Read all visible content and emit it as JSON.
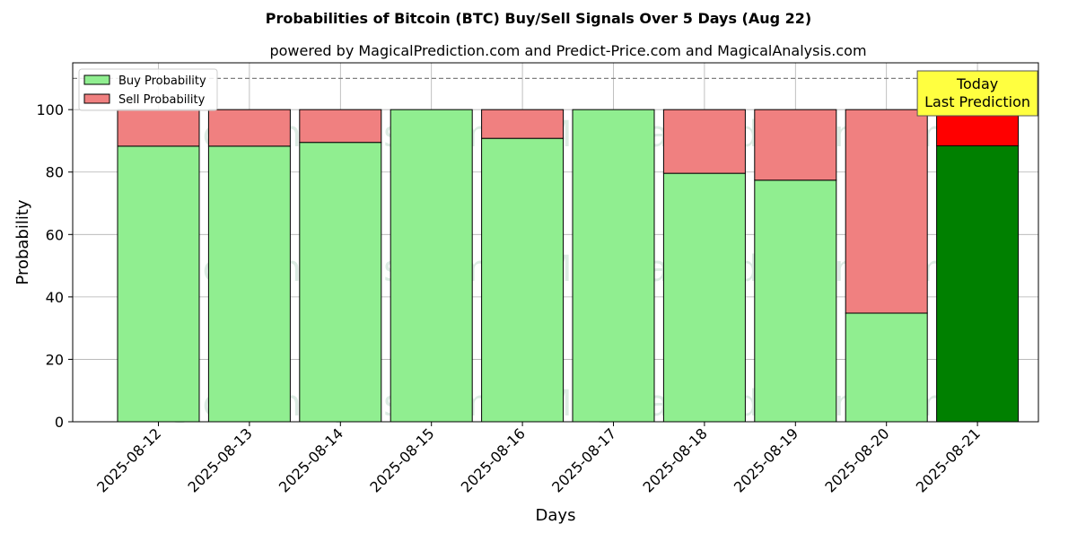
{
  "chart_data": {
    "type": "bar",
    "stacked": true,
    "title": "Probabilities of Bitcoin (BTC) Buy/Sell Signals Over 5 Days (Aug 22)",
    "subtitle": "powered by MagicalPrediction.com and Predict-Price.com and MagicalAnalysis.com",
    "xlabel": "Days",
    "ylabel": "Probability",
    "ylim": [
      0,
      115
    ],
    "yticks": [
      0,
      20,
      40,
      60,
      80,
      100
    ],
    "grid": true,
    "legend_position": "top-left",
    "reference_line": {
      "y": 110,
      "style": "dashed"
    },
    "categories": [
      "2025-08-12",
      "2025-08-13",
      "2025-08-14",
      "2025-08-15",
      "2025-08-16",
      "2025-08-17",
      "2025-08-18",
      "2025-08-19",
      "2025-08-20",
      "2025-08-21"
    ],
    "series": [
      {
        "name": "Buy Probability",
        "color": "#90ee90",
        "values": [
          88.3,
          88.3,
          89.5,
          100,
          90.8,
          100,
          79.6,
          77.4,
          34.8,
          88.4
        ]
      },
      {
        "name": "Sell Probability",
        "color": "#f08080",
        "values": [
          11.7,
          11.7,
          10.5,
          0,
          9.2,
          0,
          20.4,
          22.6,
          65.2,
          11.6
        ]
      }
    ],
    "highlight": {
      "category": "2025-08-21",
      "buy_color": "#008000",
      "sell_color": "#ff0000",
      "annotation_lines": [
        "Today",
        "Last Prediction"
      ],
      "annotation_bg": "#ffff40"
    },
    "watermarks": [
      "MagicalAnalysis.com",
      "MagicalPrediction.com",
      "MagicalAnalysis.com",
      "MagicalPrediction.com",
      "MagicalAnalysis.com",
      "MagicalPrediction.com"
    ]
  }
}
